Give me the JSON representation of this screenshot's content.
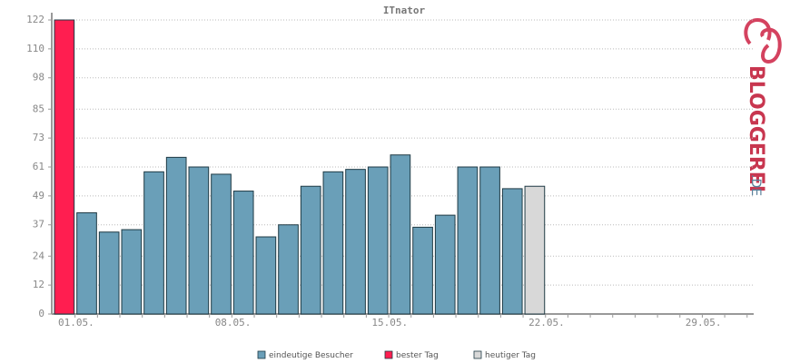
{
  "chart_data": {
    "type": "bar",
    "title": "ITnator",
    "logo": {
      "main": "BLOGGEREI",
      "suffix": ".DE"
    },
    "categories": [
      "01.05.",
      null,
      null,
      null,
      null,
      null,
      null,
      "08.05.",
      null,
      null,
      null,
      null,
      null,
      null,
      "15.05.",
      null,
      null,
      null,
      null,
      null,
      null,
      "22.05.",
      null,
      null,
      null,
      null,
      null,
      null,
      "29.05.",
      null,
      null
    ],
    "series": [
      {
        "name": "eindeutige Besucher",
        "color": "#6a9fb8",
        "values": [
          null,
          42,
          34,
          35,
          59,
          65,
          61,
          58,
          51,
          32,
          37,
          53,
          59,
          60,
          61,
          66,
          36,
          41,
          61,
          61,
          52,
          null,
          null,
          null,
          null,
          null,
          null,
          null,
          null,
          null,
          null
        ]
      },
      {
        "name": "bester Tag",
        "color": "#ff1e50",
        "values": [
          122,
          null,
          null,
          null,
          null,
          null,
          null,
          null,
          null,
          null,
          null,
          null,
          null,
          null,
          null,
          null,
          null,
          null,
          null,
          null,
          null,
          null,
          null,
          null,
          null,
          null,
          null,
          null,
          null,
          null,
          null
        ]
      },
      {
        "name": "heutiger Tag",
        "color": "#d8d8d8",
        "values": [
          null,
          null,
          null,
          null,
          null,
          null,
          null,
          null,
          null,
          null,
          null,
          null,
          null,
          null,
          null,
          null,
          null,
          null,
          null,
          null,
          null,
          53,
          null,
          null,
          null,
          null,
          null,
          null,
          null,
          null,
          null
        ]
      }
    ],
    "ylim": [
      0,
      122
    ],
    "yticks": [
      0,
      12,
      24,
      37,
      49,
      61,
      73,
      85,
      98,
      110,
      122
    ],
    "grid": true
  }
}
